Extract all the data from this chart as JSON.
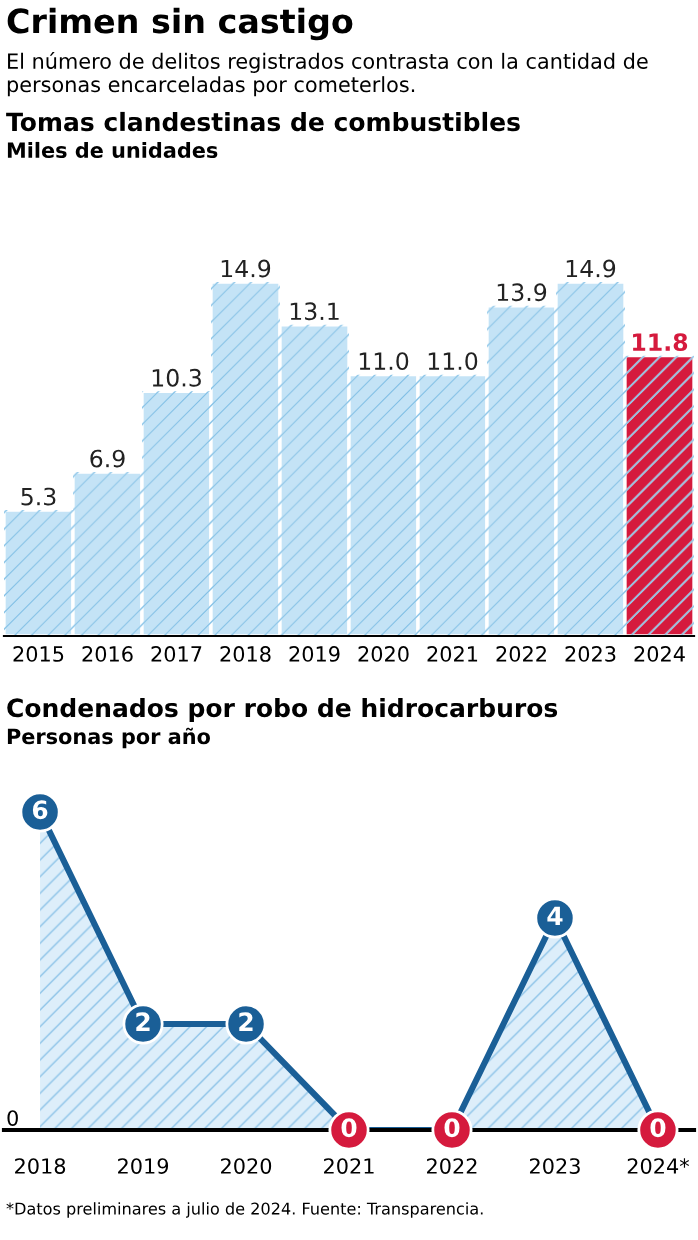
{
  "chart_data": [
    {
      "type": "bar",
      "title": "Tomas clandestinas de combustibles",
      "subtitle": "Miles de unidades",
      "annotations": [
        "Crimen sin castigo",
        "El número de delitos registrados contrasta con la cantidad de personas encarceladas por cometerlos."
      ],
      "categories": [
        "2015",
        "2016",
        "2017",
        "2018",
        "2019",
        "2020",
        "2021",
        "2022",
        "2023",
        "2024"
      ],
      "values": [
        5.3,
        6.9,
        10.3,
        14.9,
        13.1,
        11.0,
        11.0,
        13.9,
        14.9,
        11.8
      ],
      "value_labels": [
        "5.3",
        "6.9",
        "10.3",
        "14.9",
        "13.1",
        "11.0",
        "11.0",
        "13.9",
        "14.9",
        "11.8"
      ],
      "colors": [
        "#c4e3f6",
        "#c4e3f6",
        "#c4e3f6",
        "#c4e3f6",
        "#c4e3f6",
        "#c4e3f6",
        "#c4e3f6",
        "#c4e3f6",
        "#c4e3f6",
        "#d51a3d"
      ]
    },
    {
      "type": "area",
      "title": "Condenados por robo de hidrocarburos",
      "subtitle": "Personas por año",
      "annotations": [
        "0",
        "*Datos preliminares a julio de 2024. Fuente: Transparencia."
      ],
      "categories": [
        "2018",
        "2019",
        "2020",
        "2021",
        "2022",
        "2023",
        "2024*"
      ],
      "series": [
        {
          "color": "#1a5f97",
          "values": [
            6,
            2,
            2,
            0,
            0,
            4,
            0
          ],
          "colors": [
            "#1a5f97",
            "#1a5f97",
            "#1a5f97",
            "#d51a3d",
            "#d51a3d",
            "#1a5f97",
            "#d51a3d"
          ]
        }
      ],
      "marker": "circle",
      "data_labels": true,
      "grid": false
    }
  ]
}
